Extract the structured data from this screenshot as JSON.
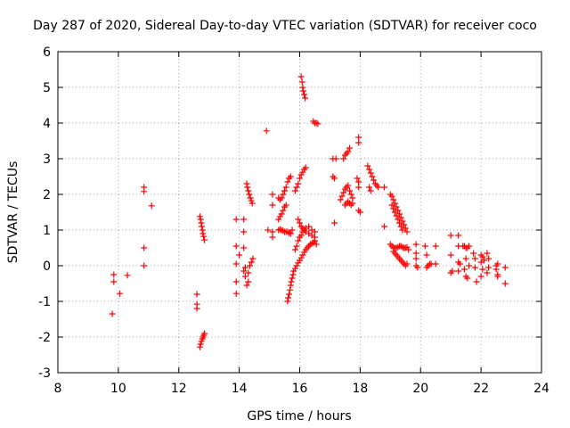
{
  "chart_data": {
    "type": "scatter",
    "title": "Day 287 of 2020, Sidereal Day-to-day VTEC variation (SDTVAR) for receiver coco",
    "xlabel": "GPS time / hours",
    "ylabel": "SDTVAR / TECUs",
    "xlim": [
      8,
      24
    ],
    "ylim": [
      -3,
      6
    ],
    "xticks": [
      8,
      10,
      12,
      14,
      16,
      18,
      20,
      22,
      24
    ],
    "yticks": [
      -3,
      -2,
      -1,
      0,
      1,
      2,
      3,
      4,
      5,
      6
    ],
    "grid": true,
    "marker": "+",
    "color": "#ff0000",
    "series": [
      {
        "name": "SDTVAR",
        "points": [
          [
            9.8,
            -1.35
          ],
          [
            9.85,
            -0.25
          ],
          [
            9.85,
            -0.45
          ],
          [
            10.05,
            -0.78
          ],
          [
            10.3,
            -0.27
          ],
          [
            10.85,
            2.2
          ],
          [
            10.85,
            2.08
          ],
          [
            10.85,
            0.5
          ],
          [
            10.85,
            0.0
          ],
          [
            11.1,
            1.68
          ],
          [
            12.6,
            -0.8
          ],
          [
            12.6,
            -1.08
          ],
          [
            12.6,
            -1.2
          ],
          [
            12.7,
            -2.28
          ],
          [
            12.72,
            -2.2
          ],
          [
            12.75,
            -2.12
          ],
          [
            12.78,
            -2.05
          ],
          [
            12.8,
            -2.0
          ],
          [
            12.83,
            -1.95
          ],
          [
            12.85,
            -1.9
          ],
          [
            12.7,
            1.38
          ],
          [
            12.72,
            1.3
          ],
          [
            12.74,
            1.2
          ],
          [
            12.76,
            1.1
          ],
          [
            12.78,
            1.0
          ],
          [
            12.8,
            0.9
          ],
          [
            12.82,
            0.82
          ],
          [
            12.85,
            0.72
          ],
          [
            13.9,
            1.3
          ],
          [
            13.9,
            0.55
          ],
          [
            13.9,
            0.05
          ],
          [
            13.9,
            -0.45
          ],
          [
            13.9,
            -0.78
          ],
          [
            14.0,
            0.3
          ],
          [
            14.15,
            1.3
          ],
          [
            14.15,
            0.95
          ],
          [
            14.15,
            0.5
          ],
          [
            14.15,
            -0.15
          ],
          [
            14.2,
            -0.3
          ],
          [
            14.25,
            -0.55
          ],
          [
            14.3,
            -0.45
          ],
          [
            14.3,
            -0.2
          ],
          [
            14.35,
            0.0
          ],
          [
            14.4,
            0.1
          ],
          [
            14.45,
            0.2
          ],
          [
            14.2,
            -0.05
          ],
          [
            14.25,
            2.3
          ],
          [
            14.27,
            2.2
          ],
          [
            14.3,
            2.1
          ],
          [
            14.33,
            2.0
          ],
          [
            14.37,
            1.9
          ],
          [
            14.4,
            1.82
          ],
          [
            14.43,
            1.75
          ],
          [
            14.9,
            3.78
          ],
          [
            14.95,
            1.0
          ],
          [
            15.1,
            2.0
          ],
          [
            15.1,
            1.7
          ],
          [
            15.1,
            0.95
          ],
          [
            15.1,
            0.8
          ],
          [
            15.3,
            1.9
          ],
          [
            15.35,
            1.85
          ],
          [
            15.4,
            1.9
          ],
          [
            15.45,
            2.0
          ],
          [
            15.5,
            2.1
          ],
          [
            15.55,
            2.2
          ],
          [
            15.6,
            2.35
          ],
          [
            15.65,
            2.45
          ],
          [
            15.7,
            2.5
          ],
          [
            15.3,
            1.3
          ],
          [
            15.35,
            1.38
          ],
          [
            15.4,
            1.45
          ],
          [
            15.45,
            1.55
          ],
          [
            15.5,
            1.65
          ],
          [
            15.55,
            1.7
          ],
          [
            15.3,
            1.0
          ],
          [
            15.35,
            1.02
          ],
          [
            15.4,
            1.0
          ],
          [
            15.45,
            0.98
          ],
          [
            15.5,
            0.95
          ],
          [
            15.55,
            0.95
          ],
          [
            15.6,
            0.95
          ],
          [
            15.65,
            0.92
          ],
          [
            15.7,
            0.9
          ],
          [
            15.75,
            1.0
          ],
          [
            15.6,
            -1.0
          ],
          [
            15.62,
            -0.9
          ],
          [
            15.65,
            -0.8
          ],
          [
            15.68,
            -0.68
          ],
          [
            15.7,
            -0.55
          ],
          [
            15.72,
            -0.45
          ],
          [
            15.75,
            -0.35
          ],
          [
            15.78,
            -0.25
          ],
          [
            15.8,
            -0.15
          ],
          [
            15.85,
            -0.08
          ],
          [
            15.9,
            0.0
          ],
          [
            15.95,
            0.08
          ],
          [
            16.0,
            0.15
          ],
          [
            16.05,
            0.22
          ],
          [
            16.1,
            0.3
          ],
          [
            16.15,
            0.38
          ],
          [
            16.2,
            0.45
          ],
          [
            16.25,
            0.5
          ],
          [
            16.3,
            0.55
          ],
          [
            16.35,
            0.6
          ],
          [
            16.4,
            0.62
          ],
          [
            16.45,
            0.65
          ],
          [
            16.5,
            0.7
          ],
          [
            16.55,
            0.6
          ],
          [
            15.85,
            0.45
          ],
          [
            15.9,
            0.55
          ],
          [
            15.95,
            0.7
          ],
          [
            16.0,
            0.8
          ],
          [
            16.05,
            0.85
          ],
          [
            16.1,
            0.95
          ],
          [
            16.15,
            1.0
          ],
          [
            16.2,
            0.95
          ],
          [
            16.3,
            0.9
          ],
          [
            16.4,
            0.85
          ],
          [
            16.5,
            0.8
          ],
          [
            15.95,
            1.3
          ],
          [
            16.0,
            1.2
          ],
          [
            16.05,
            1.1
          ],
          [
            16.1,
            1.05
          ],
          [
            16.15,
            1.0
          ],
          [
            16.2,
            1.05
          ],
          [
            16.3,
            1.1
          ],
          [
            16.4,
            1.0
          ],
          [
            16.5,
            0.95
          ],
          [
            15.85,
            2.1
          ],
          [
            15.9,
            2.2
          ],
          [
            15.95,
            2.3
          ],
          [
            16.0,
            2.45
          ],
          [
            16.05,
            2.55
          ],
          [
            16.1,
            2.62
          ],
          [
            16.15,
            2.7
          ],
          [
            16.2,
            2.75
          ],
          [
            16.05,
            5.3
          ],
          [
            16.08,
            5.15
          ],
          [
            16.1,
            5.0
          ],
          [
            16.12,
            4.9
          ],
          [
            16.15,
            4.8
          ],
          [
            16.18,
            4.7
          ],
          [
            16.45,
            4.05
          ],
          [
            16.5,
            4.0
          ],
          [
            16.55,
            4.0
          ],
          [
            16.6,
            3.98
          ],
          [
            17.1,
            3.0
          ],
          [
            17.2,
            3.0
          ],
          [
            17.1,
            2.5
          ],
          [
            17.15,
            2.45
          ],
          [
            17.15,
            1.2
          ],
          [
            17.45,
            3.0
          ],
          [
            17.5,
            3.1
          ],
          [
            17.55,
            3.15
          ],
          [
            17.6,
            3.2
          ],
          [
            17.65,
            3.3
          ],
          [
            17.35,
            1.85
          ],
          [
            17.4,
            1.95
          ],
          [
            17.45,
            2.05
          ],
          [
            17.5,
            2.15
          ],
          [
            17.55,
            2.2
          ],
          [
            17.6,
            2.25
          ],
          [
            17.65,
            2.1
          ],
          [
            17.7,
            2.0
          ],
          [
            17.75,
            1.9
          ],
          [
            17.5,
            1.7
          ],
          [
            17.55,
            1.75
          ],
          [
            17.6,
            1.8
          ],
          [
            17.65,
            1.75
          ],
          [
            17.7,
            1.7
          ],
          [
            17.75,
            1.75
          ],
          [
            17.95,
            3.6
          ],
          [
            17.95,
            3.45
          ],
          [
            17.9,
            2.45
          ],
          [
            17.95,
            2.35
          ],
          [
            17.95,
            2.2
          ],
          [
            17.95,
            1.55
          ],
          [
            18.0,
            1.5
          ],
          [
            18.25,
            2.8
          ],
          [
            18.3,
            2.7
          ],
          [
            18.35,
            2.6
          ],
          [
            18.4,
            2.5
          ],
          [
            18.45,
            2.4
          ],
          [
            18.5,
            2.3
          ],
          [
            18.55,
            2.25
          ],
          [
            18.3,
            2.2
          ],
          [
            18.35,
            2.1
          ],
          [
            18.6,
            2.2
          ],
          [
            18.8,
            2.2
          ],
          [
            18.8,
            1.1
          ],
          [
            19.0,
            2.0
          ],
          [
            19.05,
            1.95
          ],
          [
            19.1,
            1.85
          ],
          [
            19.15,
            1.75
          ],
          [
            19.2,
            1.65
          ],
          [
            19.25,
            1.55
          ],
          [
            19.3,
            1.45
          ],
          [
            19.35,
            1.35
          ],
          [
            19.4,
            1.25
          ],
          [
            19.45,
            1.15
          ],
          [
            19.5,
            1.05
          ],
          [
            19.55,
            0.95
          ],
          [
            19.05,
            1.7
          ],
          [
            19.1,
            1.6
          ],
          [
            19.15,
            1.5
          ],
          [
            19.2,
            1.4
          ],
          [
            19.25,
            1.3
          ],
          [
            19.3,
            1.2
          ],
          [
            19.35,
            1.1
          ],
          [
            19.4,
            1.0
          ],
          [
            19.0,
            0.6
          ],
          [
            19.05,
            0.55
          ],
          [
            19.1,
            0.5
          ],
          [
            19.15,
            0.5
          ],
          [
            19.2,
            0.5
          ],
          [
            19.25,
            0.52
          ],
          [
            19.3,
            0.55
          ],
          [
            19.35,
            0.55
          ],
          [
            19.4,
            0.52
          ],
          [
            19.45,
            0.5
          ],
          [
            19.5,
            0.5
          ],
          [
            19.55,
            0.52
          ],
          [
            19.1,
            0.4
          ],
          [
            19.15,
            0.35
          ],
          [
            19.2,
            0.3
          ],
          [
            19.25,
            0.25
          ],
          [
            19.3,
            0.2
          ],
          [
            19.35,
            0.15
          ],
          [
            19.4,
            0.1
          ],
          [
            19.45,
            0.05
          ],
          [
            19.5,
            0.0
          ],
          [
            19.55,
            0.05
          ],
          [
            19.6,
            0.45
          ],
          [
            19.85,
            0.6
          ],
          [
            19.85,
            0.35
          ],
          [
            19.85,
            0.2
          ],
          [
            19.85,
            0.0
          ],
          [
            19.9,
            -0.05
          ],
          [
            20.15,
            0.55
          ],
          [
            20.2,
            0.3
          ],
          [
            20.2,
            -0.05
          ],
          [
            20.25,
            0.0
          ],
          [
            20.3,
            0.05
          ],
          [
            20.35,
            0.05
          ],
          [
            20.5,
            0.55
          ],
          [
            20.5,
            0.05
          ],
          [
            21.0,
            0.85
          ],
          [
            21.0,
            0.3
          ],
          [
            21.0,
            -0.2
          ],
          [
            21.05,
            -0.15
          ],
          [
            21.25,
            0.85
          ],
          [
            21.25,
            0.55
          ],
          [
            21.25,
            0.1
          ],
          [
            21.3,
            0.05
          ],
          [
            21.25,
            -0.15
          ],
          [
            21.4,
            0.55
          ],
          [
            21.45,
            0.55
          ],
          [
            21.5,
            0.5
          ],
          [
            21.55,
            0.5
          ],
          [
            21.6,
            0.55
          ],
          [
            21.45,
            -0.1
          ],
          [
            21.5,
            -0.3
          ],
          [
            21.55,
            -0.35
          ],
          [
            21.5,
            0.2
          ],
          [
            21.6,
            0.0
          ],
          [
            21.75,
            0.35
          ],
          [
            21.8,
            0.2
          ],
          [
            21.8,
            -0.05
          ],
          [
            21.85,
            -0.45
          ],
          [
            22.0,
            0.3
          ],
          [
            22.05,
            0.25
          ],
          [
            22.0,
            0.1
          ],
          [
            22.05,
            -0.1
          ],
          [
            22.0,
            -0.3
          ],
          [
            22.1,
            0.15
          ],
          [
            22.2,
            0.35
          ],
          [
            22.25,
            0.2
          ],
          [
            22.25,
            -0.05
          ],
          [
            22.2,
            -0.2
          ],
          [
            22.5,
            0.0
          ],
          [
            22.55,
            0.05
          ],
          [
            22.5,
            -0.1
          ],
          [
            22.55,
            -0.25
          ],
          [
            22.55,
            -0.3
          ],
          [
            22.8,
            -0.05
          ],
          [
            22.8,
            -0.5
          ]
        ]
      }
    ]
  }
}
